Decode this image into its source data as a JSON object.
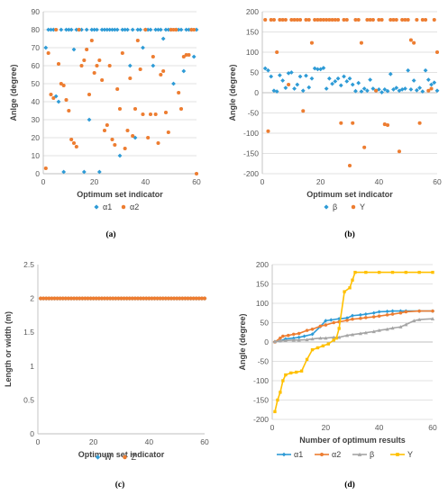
{
  "colors": {
    "blue": "#2E9BD6",
    "orange": "#ED7D31",
    "gray": "#A5A5A5",
    "yellow": "#FFC000",
    "grid": "#D9D9D9"
  },
  "chart_data": [
    {
      "type": "scatter",
      "panel_label": "(a)",
      "xlabel": "Optimum set indicator",
      "ylabel": "Anlge (degree)",
      "xlim": [
        0,
        60
      ],
      "ylim": [
        0,
        90
      ],
      "xticks": [
        0,
        20,
        40,
        60
      ],
      "yticks": [
        0,
        10,
        20,
        30,
        40,
        50,
        60,
        70,
        80,
        90
      ],
      "grid": "horizontal",
      "legend_position": "bottom",
      "series": [
        {
          "name": "α1",
          "color": "#2E9BD6",
          "marker": "diamond",
          "x": [
            1,
            2,
            3,
            4,
            5,
            6,
            7,
            8,
            9,
            10,
            11,
            12,
            13,
            14,
            15,
            16,
            17,
            18,
            19,
            20,
            21,
            22,
            23,
            24,
            25,
            26,
            27,
            28,
            29,
            30,
            31,
            32,
            33,
            34,
            35,
            36,
            37,
            38,
            39,
            40,
            41,
            42,
            43,
            44,
            45,
            46,
            47,
            48,
            49,
            50,
            51,
            52,
            53,
            54,
            55,
            56,
            57,
            58,
            59,
            60
          ],
          "y": [
            70,
            80,
            80,
            80,
            43,
            40,
            80,
            1,
            80,
            80,
            80,
            69,
            80,
            80,
            80,
            1,
            80,
            30,
            80,
            80,
            80,
            1,
            80,
            80,
            80,
            80,
            80,
            80,
            80,
            10,
            80,
            80,
            80,
            60,
            80,
            20,
            80,
            80,
            70,
            80,
            80,
            80,
            60,
            80,
            80,
            80,
            75,
            80,
            80,
            80,
            50,
            80,
            80,
            80,
            57,
            80,
            80,
            80,
            65,
            80
          ]
        },
        {
          "name": "α2",
          "color": "#ED7D31",
          "marker": "circle",
          "x": [
            1,
            2,
            3,
            4,
            5,
            6,
            7,
            8,
            9,
            10,
            11,
            12,
            13,
            14,
            15,
            16,
            17,
            18,
            19,
            20,
            21,
            22,
            23,
            24,
            25,
            26,
            27,
            28,
            29,
            30,
            31,
            32,
            33,
            34,
            35,
            36,
            37,
            38,
            39,
            40,
            41,
            42,
            43,
            44,
            45,
            46,
            47,
            48,
            49,
            50,
            51,
            52,
            53,
            54,
            55,
            56,
            57,
            58,
            59,
            60
          ],
          "y": [
            3,
            67,
            44,
            42,
            80,
            61,
            50,
            49,
            41,
            35,
            19,
            17,
            15,
            80,
            60,
            63,
            69,
            44,
            74,
            56,
            60,
            63,
            52,
            24,
            27,
            60,
            19,
            16,
            47,
            36,
            67,
            14,
            24,
            53,
            21,
            36,
            74,
            58,
            33,
            80,
            20,
            33,
            65,
            33,
            17,
            55,
            57,
            34,
            23,
            80,
            80,
            80,
            45,
            36,
            65,
            66,
            66,
            80,
            80,
            0
          ]
        }
      ]
    },
    {
      "type": "scatter",
      "panel_label": "(b)",
      "xlabel": "Optimum set indicator",
      "ylabel": "Angle (degree)",
      "xlim": [
        0,
        60
      ],
      "ylim": [
        -200,
        200
      ],
      "xticks": [
        0,
        20,
        40,
        60
      ],
      "yticks": [
        -200,
        -150,
        -100,
        -50,
        0,
        50,
        100,
        150,
        200
      ],
      "grid": "horizontal",
      "legend_position": "bottom",
      "series": [
        {
          "name": "β",
          "color": "#2E9BD6",
          "marker": "diamond",
          "x": [
            1,
            2,
            3,
            4,
            5,
            6,
            7,
            8,
            9,
            10,
            11,
            12,
            13,
            14,
            15,
            16,
            17,
            18,
            19,
            20,
            21,
            22,
            23,
            24,
            25,
            26,
            27,
            28,
            29,
            30,
            31,
            32,
            33,
            34,
            35,
            36,
            37,
            38,
            39,
            40,
            41,
            42,
            43,
            44,
            45,
            46,
            47,
            48,
            49,
            50,
            51,
            52,
            53,
            54,
            55,
            56,
            57,
            58,
            59,
            60
          ],
          "y": [
            60,
            55,
            40,
            5,
            3,
            43,
            30,
            12,
            48,
            50,
            10,
            20,
            40,
            5,
            42,
            13,
            35,
            60,
            58,
            58,
            61,
            10,
            35,
            22,
            28,
            35,
            18,
            40,
            28,
            35,
            20,
            4,
            24,
            3,
            10,
            5,
            32,
            10,
            5,
            8,
            1,
            8,
            4,
            46,
            8,
            12,
            5,
            8,
            10,
            55,
            8,
            30,
            6,
            12,
            3,
            55,
            32,
            20,
            25,
            5
          ]
        },
        {
          "name": "Υ",
          "color": "#ED7D31",
          "marker": "circle",
          "x": [
            1,
            2,
            3,
            4,
            5,
            6,
            7,
            8,
            9,
            10,
            11,
            12,
            13,
            14,
            15,
            16,
            17,
            18,
            19,
            20,
            21,
            22,
            23,
            24,
            25,
            26,
            27,
            28,
            29,
            30,
            31,
            32,
            33,
            34,
            35,
            36,
            37,
            38,
            39,
            40,
            41,
            42,
            43,
            44,
            45,
            46,
            47,
            48,
            49,
            50,
            51,
            52,
            53,
            54,
            55,
            56,
            57,
            58,
            59,
            60
          ],
          "y": [
            180,
            -95,
            180,
            180,
            100,
            180,
            180,
            180,
            20,
            180,
            180,
            180,
            180,
            -45,
            180,
            180,
            123,
            180,
            180,
            180,
            180,
            180,
            180,
            180,
            180,
            180,
            -75,
            180,
            180,
            -180,
            -75,
            180,
            180,
            123,
            -135,
            180,
            180,
            180,
            5,
            180,
            180,
            -78,
            -80,
            180,
            180,
            180,
            -145,
            180,
            180,
            180,
            130,
            123,
            180,
            -75,
            180,
            180,
            5,
            10,
            180,
            100
          ]
        }
      ]
    },
    {
      "type": "scatter",
      "panel_label": "(c)",
      "xlabel": "Optimum set indicator",
      "ylabel": "Length or width (m)",
      "xlim": [
        0,
        60
      ],
      "ylim": [
        0,
        2.5
      ],
      "xticks": [
        0,
        20,
        40,
        60
      ],
      "yticks": [
        0,
        0.5,
        1,
        1.5,
        2,
        2.5
      ],
      "grid": "none",
      "legend_position": "bottom",
      "series": [
        {
          "name": "W",
          "color": "#2E9BD6",
          "marker": "diamond",
          "x": [
            1,
            2,
            3,
            4,
            5,
            6,
            7,
            8,
            9,
            10,
            11,
            12,
            13,
            14,
            15,
            16,
            17,
            18,
            19,
            20,
            21,
            22,
            23,
            24,
            25,
            26,
            27,
            28,
            29,
            30,
            31,
            32,
            33,
            34,
            35,
            36,
            37,
            38,
            39,
            40,
            41,
            42,
            43,
            44,
            45,
            46,
            47,
            48,
            49,
            50,
            51,
            52,
            53,
            54,
            55,
            56,
            57,
            58,
            59,
            60
          ],
          "y": [
            2,
            2,
            2,
            2,
            2,
            2,
            2,
            2,
            2,
            2,
            2,
            2,
            2,
            2,
            2,
            2,
            2,
            2,
            2,
            2,
            2,
            2,
            2,
            2,
            2,
            2,
            2,
            2,
            2,
            2,
            2,
            2,
            2,
            2,
            2,
            2,
            2,
            2,
            2,
            2,
            2,
            2,
            2,
            2,
            2,
            2,
            2,
            2,
            2,
            2,
            2,
            2,
            2,
            2,
            2,
            2,
            2,
            2,
            2,
            2
          ]
        },
        {
          "name": "Z",
          "color": "#ED7D31",
          "marker": "circle",
          "x": [
            1,
            2,
            3,
            4,
            5,
            6,
            7,
            8,
            9,
            10,
            11,
            12,
            13,
            14,
            15,
            16,
            17,
            18,
            19,
            20,
            21,
            22,
            23,
            24,
            25,
            26,
            27,
            28,
            29,
            30,
            31,
            32,
            33,
            34,
            35,
            36,
            37,
            38,
            39,
            40,
            41,
            42,
            43,
            44,
            45,
            46,
            47,
            48,
            49,
            50,
            51,
            52,
            53,
            54,
            55,
            56,
            57,
            58,
            59,
            60
          ],
          "y": [
            2,
            2,
            2,
            2,
            2,
            2,
            2,
            2,
            2,
            2,
            2,
            2,
            2,
            2,
            2,
            2,
            2,
            2,
            2,
            2,
            2,
            2,
            2,
            2,
            2,
            2,
            2,
            2,
            2,
            2,
            2,
            2,
            2,
            2,
            2,
            2,
            2,
            2,
            2,
            2,
            2,
            2,
            2,
            2,
            2,
            2,
            2,
            2,
            2,
            2,
            2,
            2,
            2,
            2,
            2,
            2,
            2,
            2,
            2,
            2
          ]
        }
      ]
    },
    {
      "type": "line",
      "panel_label": "(d)",
      "xlabel": "Number of optimum results",
      "ylabel": "Angle (degree)",
      "xlim": [
        0,
        60
      ],
      "ylim": [
        -200,
        200
      ],
      "xticks": [
        0,
        20,
        40,
        60
      ],
      "yticks": [
        -200,
        -150,
        -100,
        -50,
        0,
        50,
        100,
        150,
        200
      ],
      "grid": "horizontal",
      "legend_position": "bottom",
      "series": [
        {
          "name": "α1",
          "color": "#2E9BD6",
          "marker": "diamond",
          "x": [
            1,
            3,
            5,
            8,
            10,
            12,
            15,
            18,
            20,
            22,
            25,
            28,
            30,
            33,
            35,
            38,
            40,
            43,
            45,
            48,
            50,
            55,
            60
          ],
          "y": [
            1,
            3,
            8,
            10,
            12,
            15,
            20,
            40,
            55,
            57,
            60,
            62,
            68,
            70,
            72,
            75,
            78,
            79,
            80,
            80,
            80,
            80,
            80
          ]
        },
        {
          "name": "α2",
          "color": "#ED7D31",
          "marker": "circle",
          "x": [
            1,
            3,
            4,
            6,
            8,
            10,
            13,
            15,
            18,
            20,
            23,
            25,
            28,
            30,
            33,
            35,
            38,
            40,
            43,
            45,
            48,
            50,
            55,
            60
          ],
          "y": [
            0,
            10,
            15,
            17,
            20,
            22,
            30,
            33,
            41,
            44,
            50,
            52,
            56,
            59,
            61,
            63,
            65,
            67,
            70,
            72,
            75,
            78,
            80,
            80
          ]
        },
        {
          "name": "β",
          "color": "#A5A5A5",
          "marker": "triangle",
          "x": [
            1,
            3,
            5,
            8,
            10,
            13,
            15,
            18,
            20,
            23,
            25,
            28,
            30,
            33,
            35,
            38,
            40,
            43,
            45,
            48,
            50,
            53,
            55,
            60
          ],
          "y": [
            1,
            3,
            4,
            5,
            5,
            6,
            8,
            10,
            10,
            12,
            12,
            17,
            19,
            22,
            24,
            27,
            30,
            33,
            36,
            39,
            45,
            55,
            58,
            60
          ]
        },
        {
          "name": "Υ",
          "color": "#FFC000",
          "marker": "square",
          "x": [
            1,
            2,
            3,
            4,
            5,
            7,
            9,
            11,
            13,
            15,
            17,
            19,
            21,
            23,
            24,
            25,
            27,
            29,
            30,
            31,
            35,
            40,
            45,
            50,
            55,
            60
          ],
          "y": [
            -180,
            -150,
            -130,
            -100,
            -85,
            -80,
            -78,
            -75,
            -45,
            -20,
            -15,
            -10,
            -5,
            5,
            10,
            35,
            130,
            140,
            160,
            180,
            180,
            180,
            180,
            180,
            180,
            180
          ]
        }
      ]
    }
  ]
}
